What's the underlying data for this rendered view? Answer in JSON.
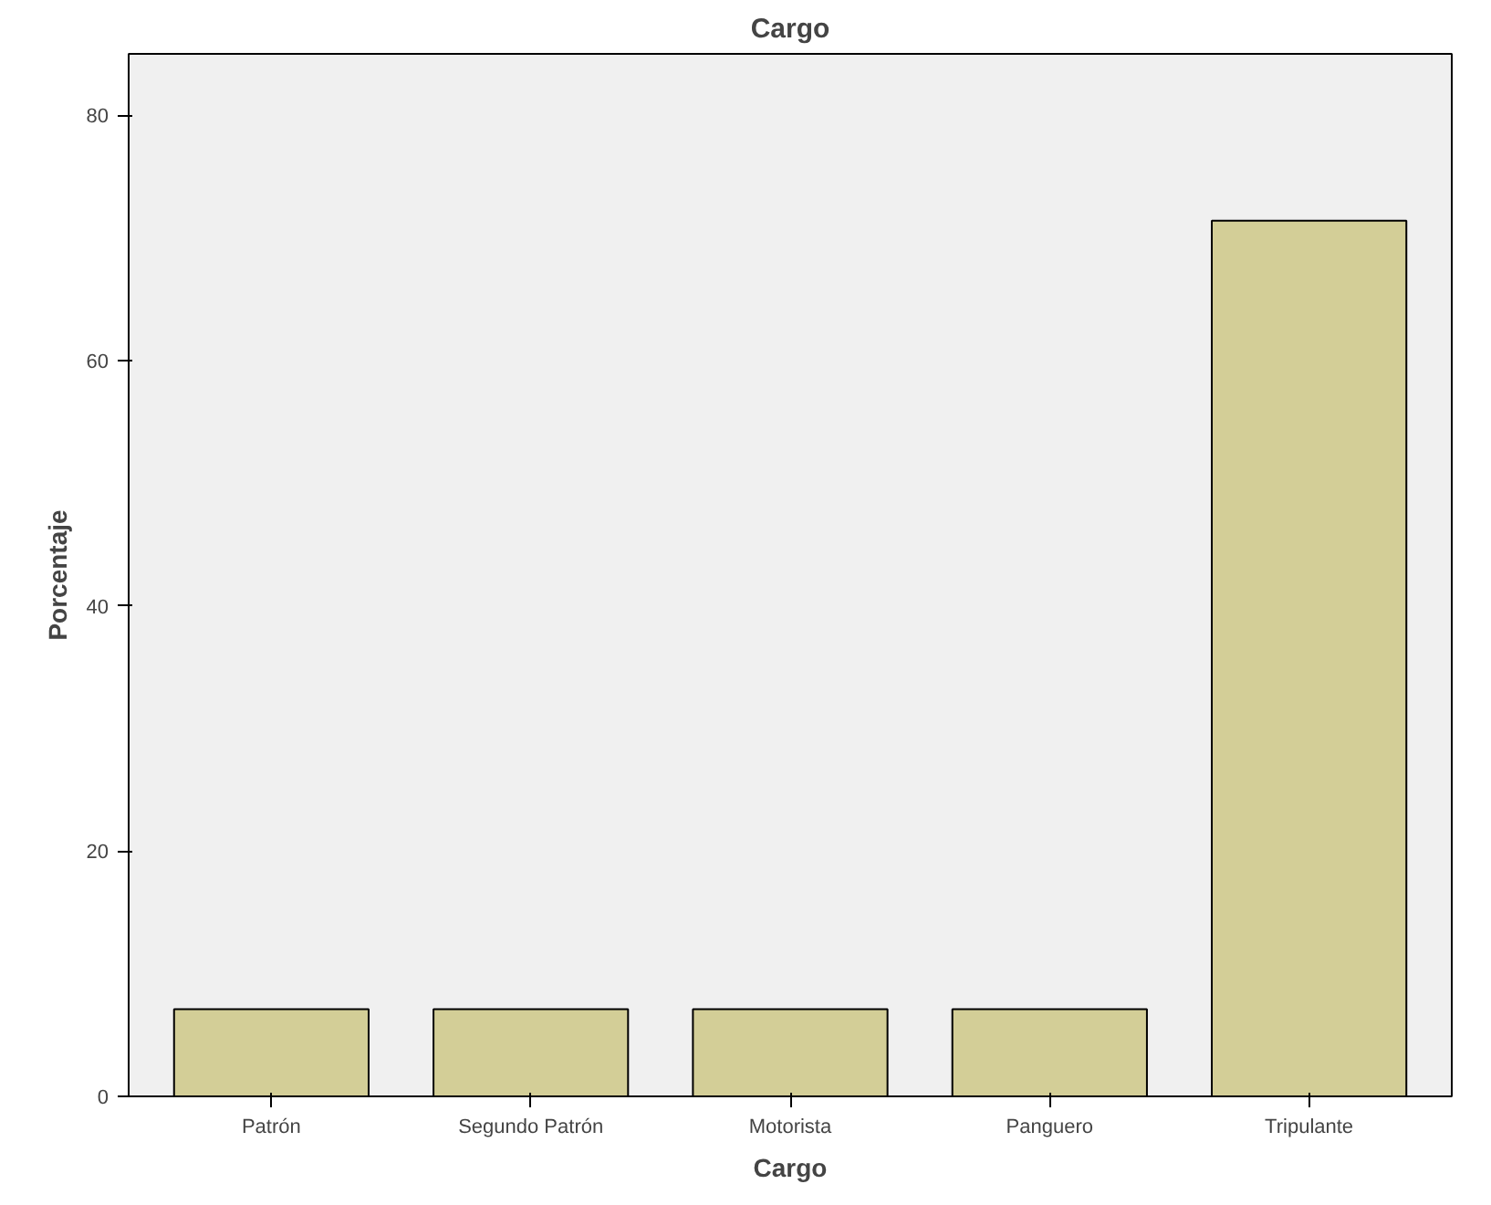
{
  "chart_data": {
    "type": "bar",
    "title": "Cargo",
    "xlabel": "Cargo",
    "ylabel": "Porcentaje",
    "categories": [
      "Patrón",
      "Segundo Patrón",
      "Motorista",
      "Panguero",
      "Tripulante"
    ],
    "values": [
      7.1,
      7.1,
      7.1,
      7.1,
      71.4
    ],
    "color": "#d3ce97",
    "ylim": [
      0,
      85
    ],
    "yticks": [
      0,
      20,
      40,
      60,
      80
    ],
    "grid": false
  }
}
